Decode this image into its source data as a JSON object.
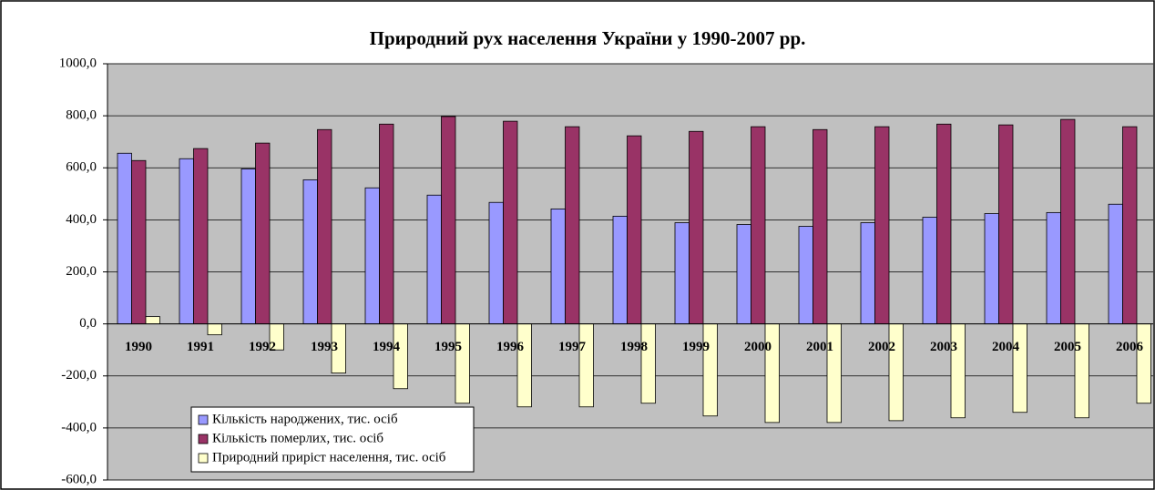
{
  "chart_data": {
    "type": "bar",
    "title": "Природний рух населення України у 1990-2007 рр.",
    "categories": [
      "1990",
      "1991",
      "1992",
      "1993",
      "1994",
      "1995",
      "1996",
      "1997",
      "1998",
      "1999",
      "2000",
      "2001",
      "2002",
      "2003",
      "2004",
      "2005",
      "2006"
    ],
    "series": [
      {
        "name": "Кількість народжених, тис. осіб",
        "color": "#9999ff",
        "values": [
          656,
          635,
          596,
          554,
          523,
          495,
          467,
          442,
          414,
          389,
          382,
          375,
          389,
          410,
          424,
          428,
          460
        ]
      },
      {
        "name": "Кількість померлих, тис. осіб",
        "color": "#993366",
        "values": [
          628,
          674,
          695,
          747,
          768,
          797,
          779,
          758,
          723,
          740,
          758,
          747,
          758,
          768,
          765,
          786,
          758
        ]
      },
      {
        "name": "Природний приріст населення, тис. осіб",
        "color": "#ffffcc",
        "values": [
          28,
          -42,
          -100,
          -189,
          -249,
          -305,
          -319,
          -319,
          -305,
          -354,
          -379,
          -379,
          -372,
          -361,
          -340,
          -361,
          -305
        ]
      }
    ],
    "ylim": [
      -600,
      1000
    ],
    "yticks": [
      {
        "value": -600,
        "label": "-600,0"
      },
      {
        "value": -400,
        "label": "-400,0"
      },
      {
        "value": -200,
        "label": "-200,0"
      },
      {
        "value": 0,
        "label": "0,0"
      },
      {
        "value": 200,
        "label": "200,0"
      },
      {
        "value": 400,
        "label": "400,0"
      },
      {
        "value": 600,
        "label": "600,0"
      },
      {
        "value": 800,
        "label": "800,0"
      },
      {
        "value": 1000,
        "label": "1000,0"
      }
    ],
    "grid": true
  }
}
